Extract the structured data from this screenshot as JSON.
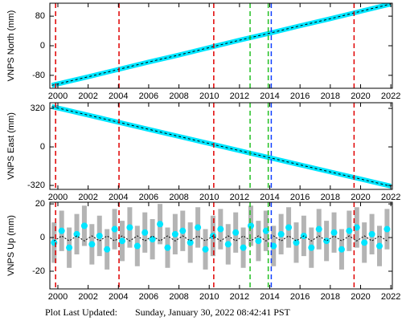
{
  "chart_data": [
    {
      "type": "line",
      "ylabel": "VNPS North (mm)",
      "xlim": [
        1999.47,
        2022.1
      ],
      "ylim": [
        -115,
        115
      ],
      "xticks": [
        2000,
        2002,
        2004,
        2006,
        2008,
        2010,
        2012,
        2014,
        2016,
        2018,
        2020,
        2022
      ],
      "yticks": [
        -80,
        0,
        80
      ],
      "x": [
        1999.6,
        2002,
        2004,
        2006,
        2008,
        2010,
        2012,
        2014,
        2016,
        2018,
        2020,
        2022
      ],
      "values": [
        -107,
        -84,
        -64,
        -44,
        -25,
        -5,
        15,
        34,
        54,
        73,
        93,
        113
      ],
      "color": "#00e5ff",
      "model_color": "#000000",
      "events": [
        {
          "x": 1999.85,
          "color": "#e00000"
        },
        {
          "x": 2004.04,
          "color": "#e00000"
        },
        {
          "x": 2010.3,
          "color": "#e00000"
        },
        {
          "x": 2012.7,
          "color": "#22c022"
        },
        {
          "x": 2013.9,
          "color": "#22c022"
        },
        {
          "x": 2014.1,
          "color": "#1040ff"
        },
        {
          "x": 2019.57,
          "color": "#e00000"
        }
      ]
    },
    {
      "type": "line",
      "ylabel": "VNPS East (mm)",
      "xlim": [
        1999.47,
        2022.1
      ],
      "ylim": [
        -353,
        367
      ],
      "xticks": [
        2000,
        2002,
        2004,
        2006,
        2008,
        2010,
        2012,
        2014,
        2016,
        2018,
        2020,
        2022
      ],
      "yticks": [
        -320,
        0,
        320
      ],
      "x": [
        1999.6,
        2002,
        2004,
        2006,
        2008,
        2010,
        2012,
        2014,
        2016,
        2018,
        2020,
        2022
      ],
      "values": [
        335,
        264,
        205,
        146,
        87,
        28,
        -31,
        -90,
        -149,
        -208,
        -267,
        -326
      ],
      "color": "#00e5ff",
      "model_color": "#000000",
      "events": [
        {
          "x": 1999.85,
          "color": "#e00000"
        },
        {
          "x": 2004.04,
          "color": "#e00000"
        },
        {
          "x": 2010.3,
          "color": "#e00000"
        },
        {
          "x": 2012.7,
          "color": "#22c022"
        },
        {
          "x": 2013.9,
          "color": "#22c022"
        },
        {
          "x": 2014.1,
          "color": "#1040ff"
        },
        {
          "x": 2019.57,
          "color": "#e00000"
        }
      ]
    },
    {
      "type": "errorbar",
      "ylabel": "VNPS Up (mm)",
      "xlim": [
        1999.47,
        2022.1
      ],
      "ylim": [
        -30.5,
        21
      ],
      "xticks": [
        2000,
        2002,
        2004,
        2006,
        2008,
        2010,
        2012,
        2014,
        2016,
        2018,
        2020,
        2022
      ],
      "yticks": [
        -20,
        0,
        20
      ],
      "x": [
        1999.75,
        2000.25,
        2000.75,
        2001.25,
        2001.75,
        2002.25,
        2002.75,
        2003.25,
        2003.75,
        2004.25,
        2004.75,
        2005.25,
        2005.75,
        2006.25,
        2006.75,
        2007.25,
        2007.75,
        2008.25,
        2008.75,
        2009.25,
        2009.75,
        2010.25,
        2010.75,
        2011.25,
        2011.75,
        2012.25,
        2012.75,
        2013.25,
        2013.75,
        2014.25,
        2014.75,
        2015.25,
        2015.75,
        2016.25,
        2016.75,
        2017.25,
        2017.75,
        2018.25,
        2018.75,
        2019.25,
        2019.75,
        2020.25,
        2020.75,
        2021.25,
        2021.75
      ],
      "values": [
        -3,
        4,
        -6,
        2,
        7,
        -4,
        1,
        -7,
        5,
        -2,
        6,
        -5,
        3,
        -1,
        8,
        -6,
        2,
        4,
        -3,
        6,
        -7,
        1,
        5,
        -4,
        3,
        -6,
        7,
        -2,
        4,
        -5,
        2,
        6,
        -3,
        1,
        -6,
        5,
        -2,
        3,
        -7,
        4,
        6,
        -3,
        2,
        -5,
        5
      ],
      "model": [
        -2,
        1,
        -2,
        1,
        -2,
        1,
        -2,
        1,
        -2,
        1,
        -2,
        1,
        -2,
        1,
        -2,
        1,
        -2,
        1,
        -2,
        1,
        -2,
        1,
        -2,
        1,
        -2,
        1,
        -2,
        1,
        -2,
        1,
        -2,
        1,
        -2,
        1,
        -2,
        1,
        -2,
        1,
        -2,
        1,
        -2,
        1,
        -2,
        1,
        -2
      ],
      "error": 12,
      "color": "#00e5ff",
      "error_color": "#b4b4b4",
      "model_color": "#000000",
      "events": [
        {
          "x": 1999.85,
          "color": "#e00000"
        },
        {
          "x": 2004.04,
          "color": "#e00000"
        },
        {
          "x": 2010.3,
          "color": "#e00000"
        },
        {
          "x": 2012.7,
          "color": "#22c022"
        },
        {
          "x": 2013.9,
          "color": "#22c022"
        },
        {
          "x": 2014.1,
          "color": "#1040ff"
        },
        {
          "x": 2019.57,
          "color": "#e00000"
        }
      ]
    }
  ],
  "footer": {
    "label": "Plot Last Updated:",
    "timestamp": "Sunday, January 30, 2022 08:42:41 PST"
  }
}
